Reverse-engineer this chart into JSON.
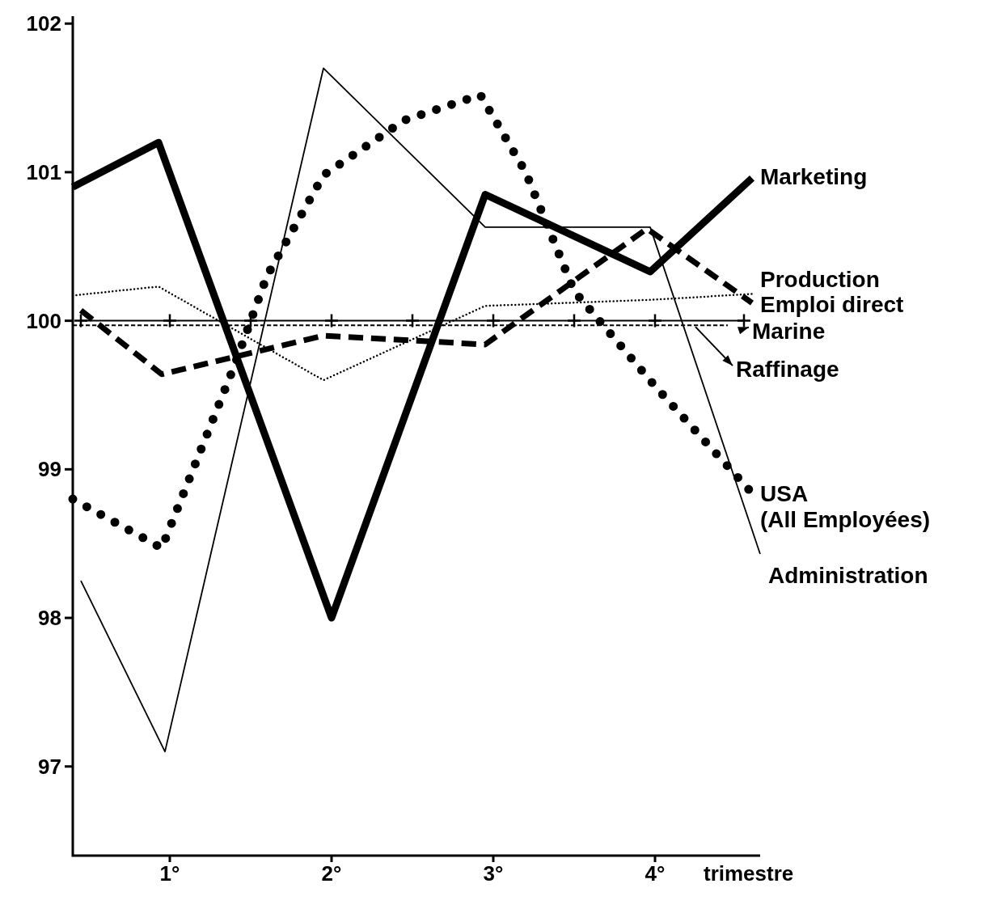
{
  "chart_data": {
    "type": "line",
    "xlabel": "trimestre",
    "xlim": [
      0.4,
      4.65
    ],
    "xticks": [
      {
        "value": 1,
        "label": "1°"
      },
      {
        "value": 2,
        "label": "2°"
      },
      {
        "value": 3,
        "label": "3°"
      },
      {
        "value": 4,
        "label": "4°"
      }
    ],
    "ylim": [
      96.4,
      102.05
    ],
    "yticks": [
      97,
      98,
      99,
      100,
      101,
      102
    ],
    "grid": false,
    "legend": "right",
    "series": [
      {
        "name": "Marketing",
        "color": "#000000",
        "line_style": "solid",
        "marker": "none",
        "x": [
          0.4,
          0.93,
          2,
          2.95,
          3.97,
          4.6
        ],
        "values": [
          100.9,
          101.2,
          98.0,
          100.85,
          100.33,
          100.96
        ]
      },
      {
        "name": "Production",
        "color": "#000000",
        "line_style": "dashed",
        "marker": "none",
        "x": [
          0.45,
          0.95,
          1.95,
          2.95,
          3.95,
          4.6
        ],
        "values": [
          100.07,
          99.64,
          99.9,
          99.84,
          100.62,
          100.12
        ]
      },
      {
        "name": "Emploi direct",
        "color": "#000000",
        "line_style": "dotted",
        "marker": "none",
        "x": [
          0.4,
          0.93,
          1.95,
          2.95,
          3.95,
          4.6
        ],
        "values": [
          100.17,
          100.23,
          99.6,
          100.1,
          100.14,
          100.18
        ]
      },
      {
        "name": "Marine",
        "color": "#000000",
        "line_style": "solid",
        "marker": "cross",
        "x": [
          0.45,
          1,
          1.5,
          2,
          2.5,
          3,
          3.5,
          4,
          4.55
        ],
        "values": [
          100.0,
          100.0,
          100.0,
          100.0,
          100.0,
          100.0,
          100.0,
          100.0,
          100.0
        ]
      },
      {
        "name": "Raffinage",
        "color": "#000000",
        "line_style": "dashed",
        "marker": "none",
        "x": [
          0.4,
          4.45
        ],
        "values": [
          99.97,
          99.97
        ]
      },
      {
        "name": "USA (All Employées)",
        "color": "#000000",
        "line_style": "dotted",
        "marker": "none",
        "x": [
          0.4,
          0.95,
          1.4,
          1.6,
          1.95,
          2.45,
          2.92,
          3.2,
          3.5,
          4.0,
          4.6
        ],
        "values": [
          98.8,
          98.47,
          99.7,
          100.3,
          100.98,
          101.35,
          101.52,
          101.0,
          100.2,
          99.56,
          98.84
        ]
      },
      {
        "name": "Administration",
        "color": "#000000",
        "line_style": "solid",
        "marker": "none",
        "x": [
          0.45,
          0.97,
          1.95,
          2.95,
          3.97,
          4.65
        ],
        "values": [
          98.25,
          97.1,
          101.7,
          100.63,
          100.63,
          98.43
        ]
      }
    ]
  }
}
